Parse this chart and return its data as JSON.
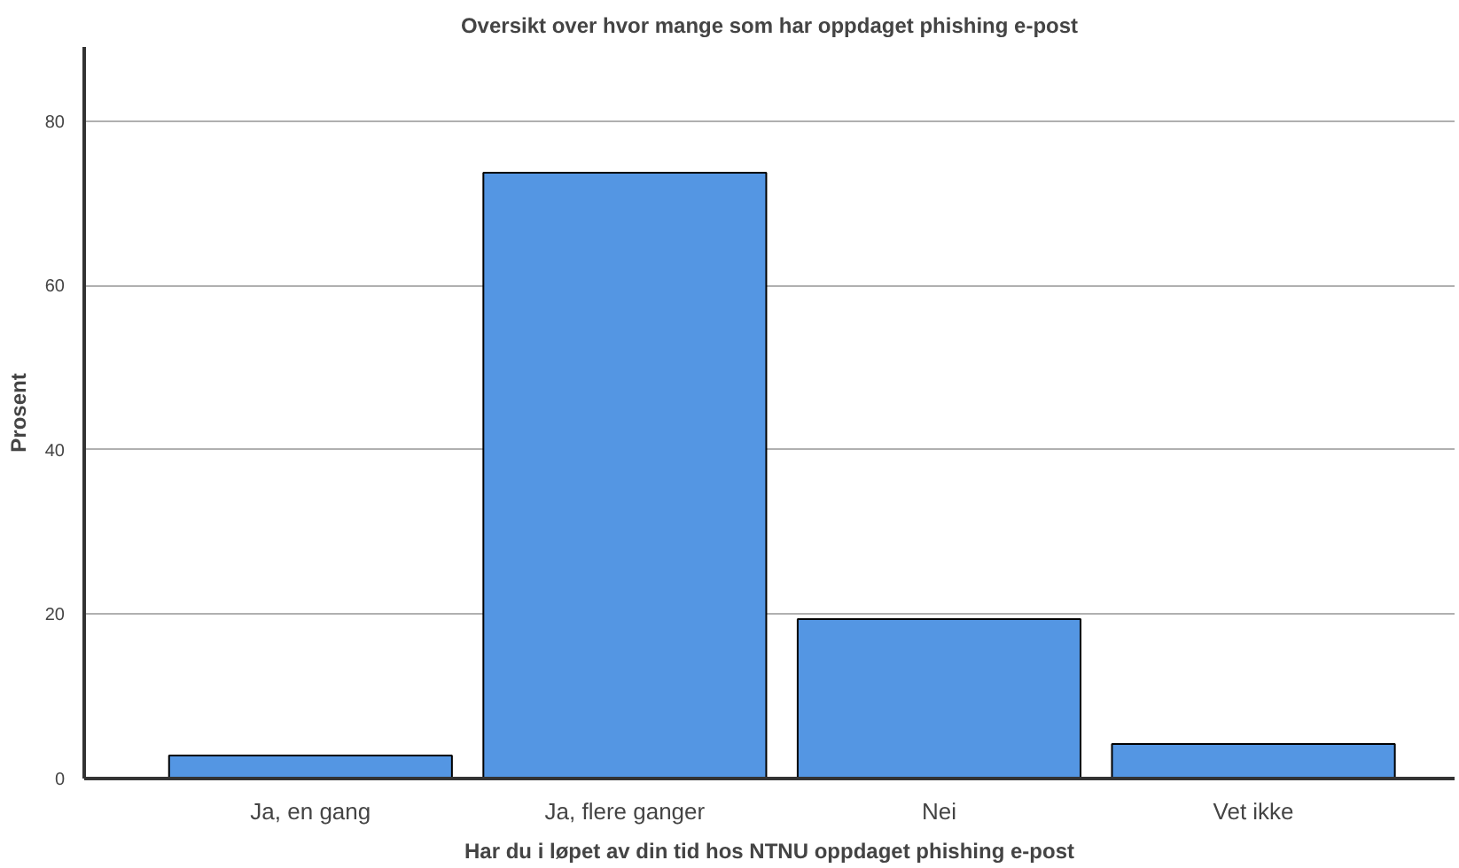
{
  "chart_data": {
    "type": "bar",
    "title": "Oversikt over hvor mange som har oppdaget phishing e-post",
    "xlabel": "Har du i løpet av din tid hos NTNU oppdaget phishing e-post",
    "ylabel": "Prosent",
    "categories": [
      "Ja, en gang",
      "Ja, flere ganger",
      "Nei",
      "Vet ikke"
    ],
    "values": [
      2.8,
      73.7,
      19.4,
      4.2
    ],
    "color": "#5496e3",
    "ylim": [
      0,
      89
    ],
    "yticks": [
      0,
      20,
      40,
      60,
      80
    ],
    "grid": "y"
  }
}
